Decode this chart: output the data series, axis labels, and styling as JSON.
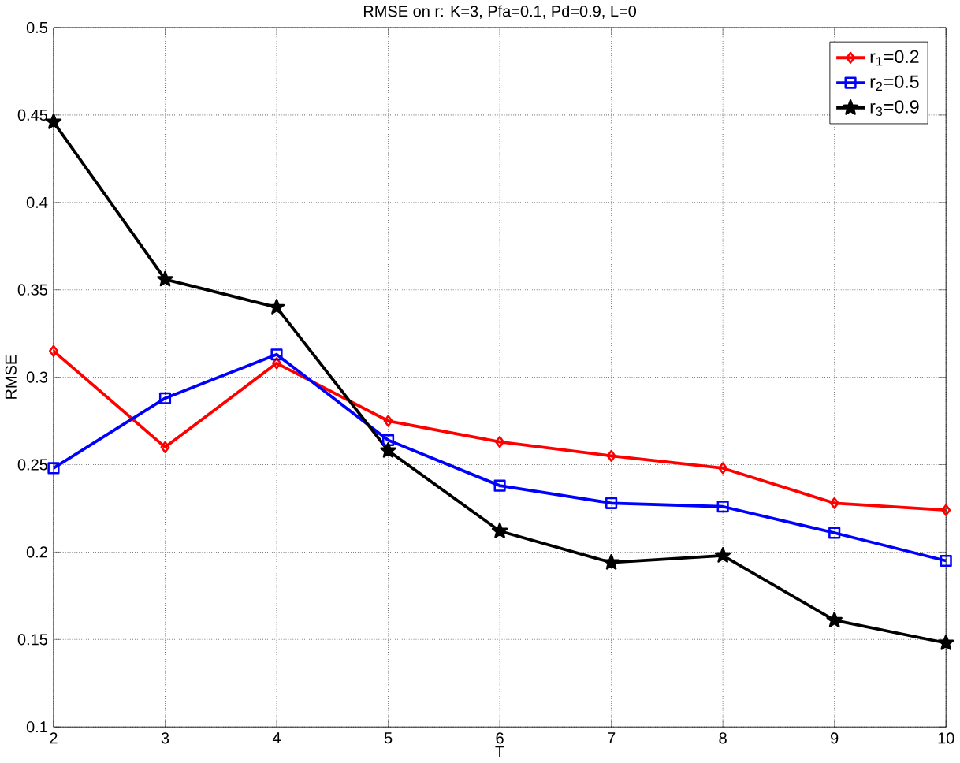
{
  "chart_data": {
    "type": "line",
    "title": "RMSE on r: K=3, Pfa=0.1, Pd=0.9, L=0",
    "xlabel": "T",
    "ylabel": "RMSE",
    "x": [
      2,
      3,
      4,
      5,
      6,
      7,
      8,
      9,
      10
    ],
    "series": [
      {
        "name": "r$_{1}$=0.2",
        "color": "#ff0000",
        "marker": "diamond",
        "values": [
          0.315,
          0.26,
          0.308,
          0.275,
          0.263,
          0.255,
          0.248,
          0.228,
          0.224
        ]
      },
      {
        "name": "r$_{2}$=0.5",
        "color": "#0000ff",
        "marker": "square",
        "values": [
          0.248,
          0.288,
          0.313,
          0.264,
          0.238,
          0.228,
          0.226,
          0.211,
          0.195
        ]
      },
      {
        "name": "r$_{3}$=0.9",
        "color": "#000000",
        "marker": "star",
        "values": [
          0.446,
          0.356,
          0.34,
          0.258,
          0.212,
          0.194,
          0.198,
          0.161,
          0.148
        ]
      }
    ],
    "xlim": [
      2,
      10
    ],
    "ylim": [
      0.1,
      0.5
    ],
    "xticks": [
      2,
      3,
      4,
      5,
      6,
      7,
      8,
      9,
      10
    ],
    "yticks": [
      0.1,
      0.15,
      0.2,
      0.25,
      0.3,
      0.35,
      0.4,
      0.45,
      0.5
    ],
    "grid": true,
    "legend": "top right",
    "line_style": "solid"
  }
}
